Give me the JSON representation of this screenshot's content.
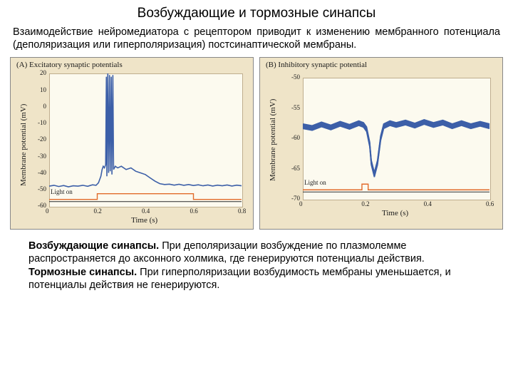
{
  "title": "Возбуждающие и тормозные синапсы",
  "intro": "Взаимодействие нейромедиатора с рецептором приводит к изменению мембранного потенциала (деполяризация или гиперполяризация) постсинаптической мембраны.",
  "bottom": {
    "p1_bold": "Возбуждающие синапсы.",
    "p1_rest": " При деполяризации возбуждение по плазмолемме распространяется до аксонного холмика, где генерируются потенциалы действия.",
    "p2_bold": "Тормозные синапсы.",
    "p2_rest": " При гиперполяризации возбудимость мембраны уменьшается, и потенциалы действия не генерируются."
  },
  "colors": {
    "card_bg": "#efe4c8",
    "plot_bg": "#fcfaef",
    "trace": "#3c5fa8",
    "stim": "#e26b2a",
    "stim_base": "#2a2a2a",
    "gridline": "#d8cda8"
  },
  "chartA": {
    "panel_label": "(A)  Excitatory synaptic potentials",
    "ylabel": "Membrane potential (mV)",
    "xlabel": "Time (s)",
    "light_on": "Light on",
    "xlim": [
      0,
      0.8
    ],
    "xticks": [
      0,
      0.2,
      0.4,
      0.6,
      0.8
    ],
    "ylim": [
      -60,
      20
    ],
    "yticks": [
      20,
      10,
      0,
      -10,
      -20,
      -30,
      -40,
      -50,
      -60
    ],
    "fontsize_label": 9,
    "fontsize_axis": 11,
    "trace_width": 1.6,
    "stim_base_y": -56,
    "stim_on_x": [
      0.2,
      0.6
    ],
    "data": [
      [
        0.0,
        -48
      ],
      [
        0.02,
        -47.5
      ],
      [
        0.04,
        -48.2
      ],
      [
        0.06,
        -47.6
      ],
      [
        0.08,
        -48.4
      ],
      [
        0.1,
        -47.8
      ],
      [
        0.12,
        -48
      ],
      [
        0.14,
        -47.5
      ],
      [
        0.16,
        -48.1
      ],
      [
        0.18,
        -47.2
      ],
      [
        0.195,
        -47.5
      ],
      [
        0.205,
        -46
      ],
      [
        0.215,
        -42
      ],
      [
        0.22,
        -38
      ],
      [
        0.225,
        -36
      ],
      [
        0.23,
        -37
      ],
      [
        0.235,
        -35
      ],
      [
        0.238,
        18
      ],
      [
        0.24,
        -42
      ],
      [
        0.244,
        20
      ],
      [
        0.247,
        -40
      ],
      [
        0.251,
        19
      ],
      [
        0.254,
        -39
      ],
      [
        0.258,
        18
      ],
      [
        0.261,
        -41
      ],
      [
        0.265,
        19
      ],
      [
        0.268,
        -38
      ],
      [
        0.275,
        -36
      ],
      [
        0.285,
        -37
      ],
      [
        0.3,
        -36
      ],
      [
        0.32,
        -38
      ],
      [
        0.34,
        -37
      ],
      [
        0.36,
        -39
      ],
      [
        0.38,
        -40
      ],
      [
        0.4,
        -41
      ],
      [
        0.42,
        -43
      ],
      [
        0.44,
        -45
      ],
      [
        0.46,
        -46.5
      ],
      [
        0.48,
        -47
      ],
      [
        0.5,
        -46.8
      ],
      [
        0.52,
        -47.4
      ],
      [
        0.54,
        -46.9
      ],
      [
        0.56,
        -47.5
      ],
      [
        0.58,
        -47.0
      ],
      [
        0.6,
        -47.6
      ],
      [
        0.62,
        -47.2
      ],
      [
        0.64,
        -47.8
      ],
      [
        0.66,
        -47.3
      ],
      [
        0.68,
        -47.9
      ],
      [
        0.7,
        -47.4
      ],
      [
        0.72,
        -47.8
      ],
      [
        0.74,
        -47.3
      ],
      [
        0.76,
        -47.9
      ],
      [
        0.78,
        -47.4
      ],
      [
        0.8,
        -47.8
      ]
    ]
  },
  "chartB": {
    "panel_label": "(B)  Inhibitory synaptic potential",
    "ylabel": "Membrane potential (mV)",
    "xlabel": "Time (s)",
    "light_on": "Light on",
    "xlim": [
      0,
      0.6
    ],
    "xticks": [
      0,
      0.2,
      0.4,
      0.6
    ],
    "ylim": [
      -70,
      -50
    ],
    "yticks": [
      -50,
      -55,
      -60,
      -65,
      -70
    ],
    "fontsize_label": 9,
    "fontsize_axis": 11,
    "trace_width": 1.6,
    "n_traces": 6,
    "stim_base_y": -68.5,
    "stim_on_x": [
      0.19,
      0.21
    ],
    "data": [
      [
        0.0,
        -58
      ],
      [
        0.03,
        -58.3
      ],
      [
        0.06,
        -57.7
      ],
      [
        0.09,
        -58.2
      ],
      [
        0.12,
        -57.6
      ],
      [
        0.15,
        -58.1
      ],
      [
        0.18,
        -57.5
      ],
      [
        0.195,
        -57.8
      ],
      [
        0.205,
        -58.5
      ],
      [
        0.215,
        -61
      ],
      [
        0.22,
        -64
      ],
      [
        0.23,
        -66
      ],
      [
        0.24,
        -64
      ],
      [
        0.25,
        -60
      ],
      [
        0.26,
        -58
      ],
      [
        0.28,
        -57.5
      ],
      [
        0.3,
        -57.8
      ],
      [
        0.33,
        -57.4
      ],
      [
        0.36,
        -57.9
      ],
      [
        0.39,
        -57.3
      ],
      [
        0.42,
        -57.8
      ],
      [
        0.45,
        -57.4
      ],
      [
        0.48,
        -58.0
      ],
      [
        0.51,
        -57.5
      ],
      [
        0.54,
        -58.0
      ],
      [
        0.57,
        -57.6
      ],
      [
        0.6,
        -58.0
      ]
    ]
  }
}
